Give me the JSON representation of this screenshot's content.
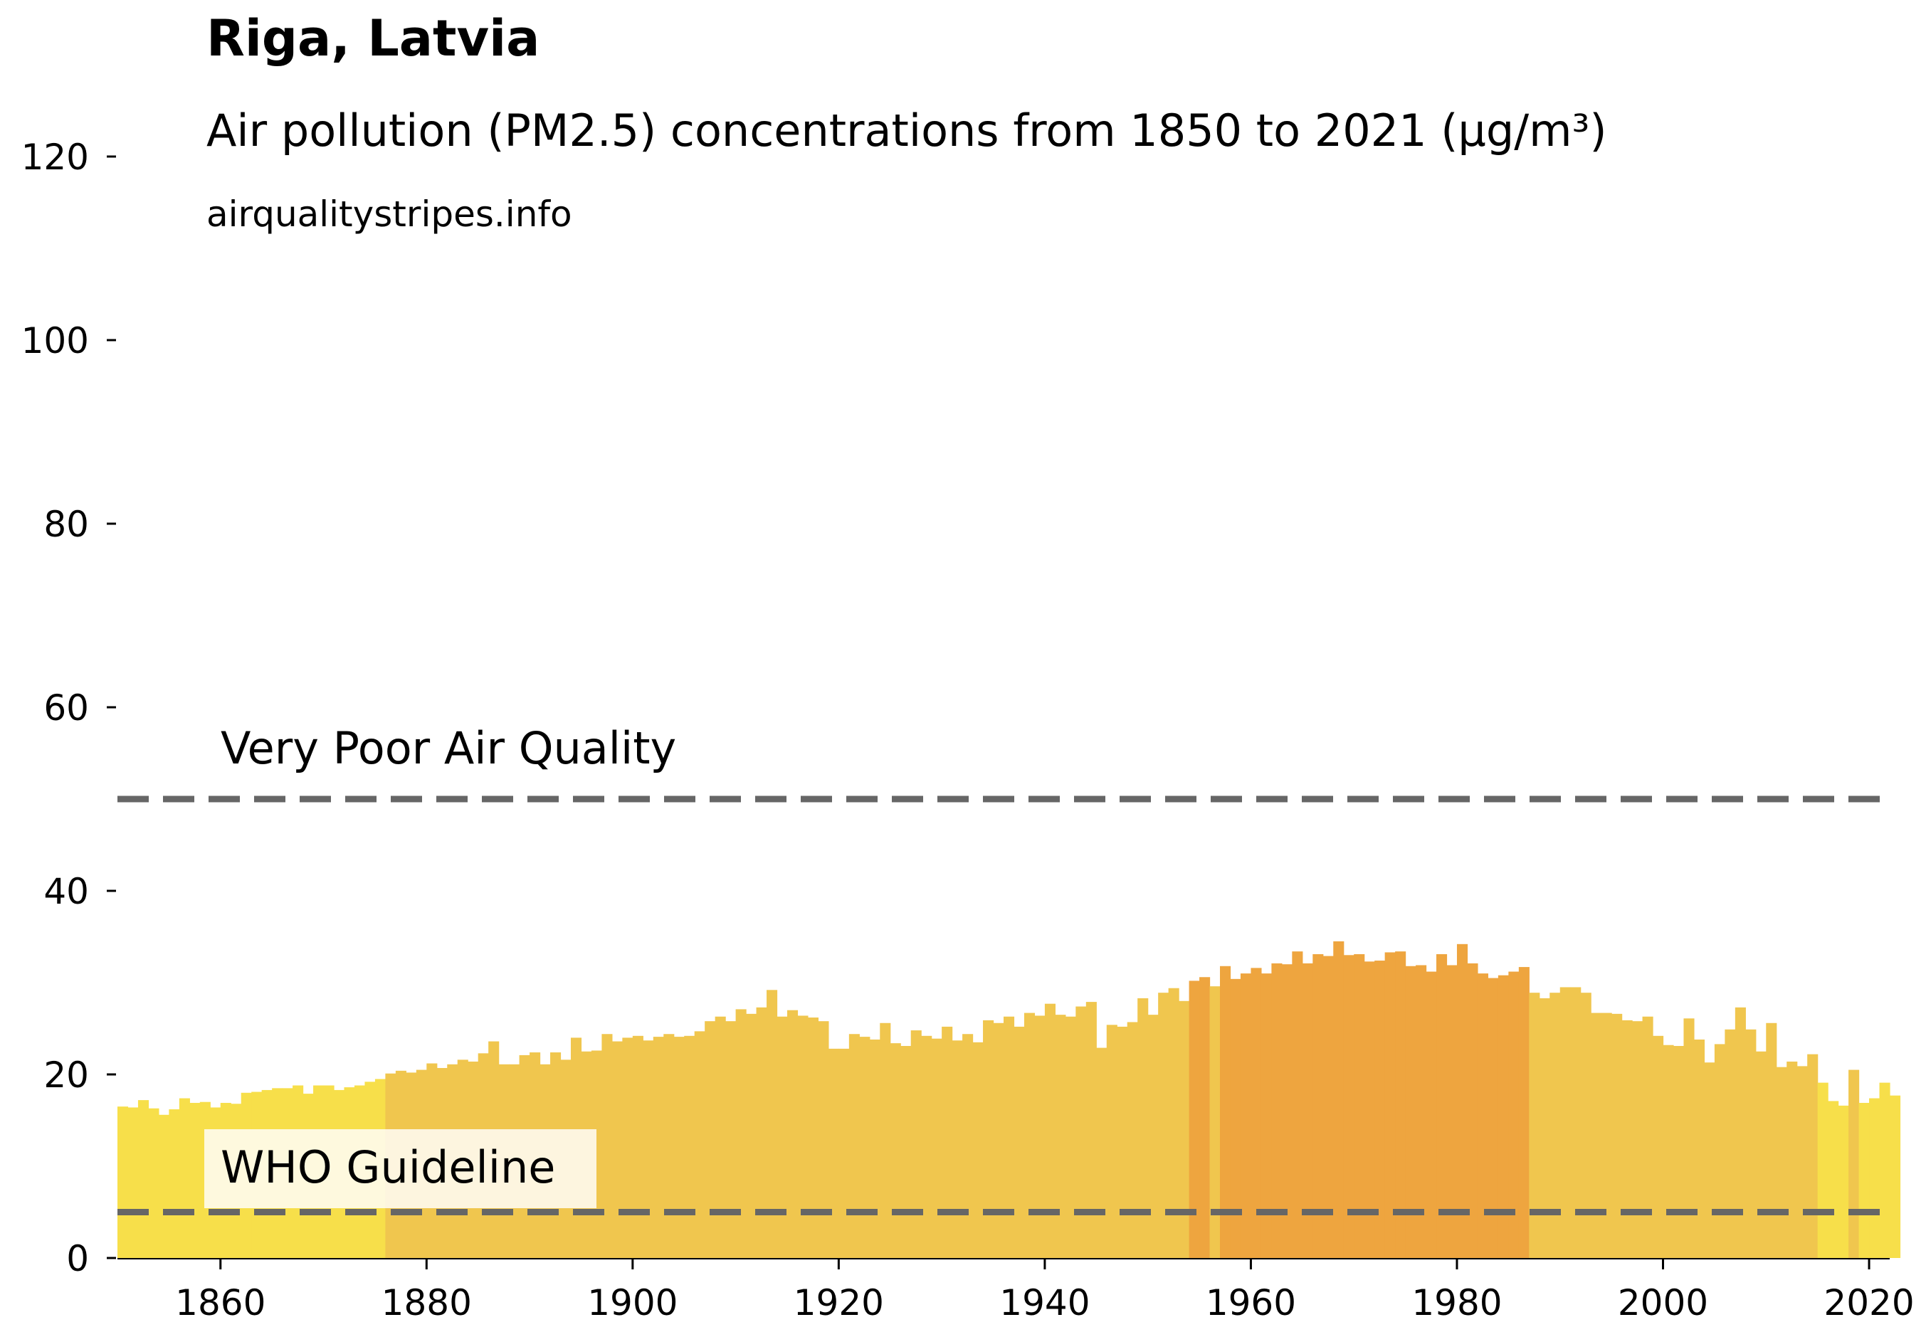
{
  "chart_data": {
    "type": "bar",
    "title": "Riga, Latvia",
    "subtitle": "Air pollution (PM2.5) concentrations from 1850 to 2021 (µg/m³)",
    "source": "airqualitystripes.info",
    "x_start": 1850,
    "x_end": 2021,
    "xlim": [
      1850,
      2022
    ],
    "ylim": [
      0,
      120
    ],
    "xticks": [
      1860,
      1880,
      1900,
      1920,
      1940,
      1960,
      1980,
      2000,
      2020
    ],
    "yticks": [
      0,
      20,
      40,
      60,
      80,
      100,
      120
    ],
    "grid": false,
    "values": [
      16.5,
      16.4,
      17.2,
      16.3,
      15.6,
      16.2,
      17.4,
      16.9,
      17.0,
      16.4,
      16.9,
      16.8,
      18.0,
      18.1,
      18.3,
      18.5,
      18.5,
      18.8,
      17.9,
      18.8,
      18.8,
      18.3,
      18.6,
      18.8,
      19.2,
      19.5,
      20.1,
      20.4,
      20.2,
      20.5,
      21.2,
      20.7,
      21.1,
      21.6,
      21.4,
      22.3,
      23.6,
      21.1,
      21.1,
      22.1,
      22.4,
      21.1,
      22.4,
      21.6,
      24.0,
      22.5,
      22.6,
      24.4,
      23.6,
      24.0,
      24.2,
      23.7,
      24.1,
      24.4,
      24.1,
      24.2,
      24.7,
      25.8,
      26.3,
      25.8,
      27.1,
      26.6,
      27.3,
      29.2,
      26.3,
      27.0,
      26.4,
      26.2,
      25.8,
      22.8,
      22.8,
      24.4,
      24.1,
      23.8,
      25.6,
      23.4,
      23.1,
      24.8,
      24.2,
      23.9,
      25.2,
      23.7,
      24.4,
      23.5,
      25.9,
      25.6,
      26.3,
      25.2,
      26.7,
      26.4,
      27.7,
      26.5,
      26.3,
      27.4,
      27.9,
      22.9,
      25.4,
      25.2,
      25.7,
      28.3,
      26.5,
      28.9,
      29.4,
      28.0,
      30.2,
      30.6,
      29.6,
      31.8,
      30.4,
      31.0,
      31.6,
      31.0,
      32.1,
      32.0,
      33.4,
      32.1,
      33.1,
      32.9,
      34.5,
      33.0,
      33.1,
      32.3,
      32.4,
      33.3,
      33.4,
      31.8,
      31.9,
      31.2,
      33.1,
      31.9,
      34.2,
      32.1,
      31.0,
      30.5,
      30.8,
      31.2,
      31.7,
      28.9,
      28.3,
      28.9,
      29.5,
      29.5,
      28.9,
      26.7,
      26.7,
      26.6,
      25.9,
      25.8,
      26.3,
      24.2,
      23.2,
      23.1,
      26.1,
      23.8,
      21.3,
      23.3,
      24.9,
      27.3,
      24.9,
      22.5,
      25.6,
      20.8,
      21.4,
      20.9,
      22.2,
      19.1,
      17.1,
      16.6,
      20.5,
      16.9,
      17.4,
      19.1,
      17.7
    ],
    "category_colors": {
      "low": "#f7df4a",
      "mid": "#f0c64e",
      "high": "#eea53f"
    },
    "reference_lines": [
      {
        "value": 50,
        "label": "Very Poor Air Quality"
      },
      {
        "value": 5,
        "label": "WHO Guideline"
      }
    ],
    "reference_line_color": "#666666"
  }
}
